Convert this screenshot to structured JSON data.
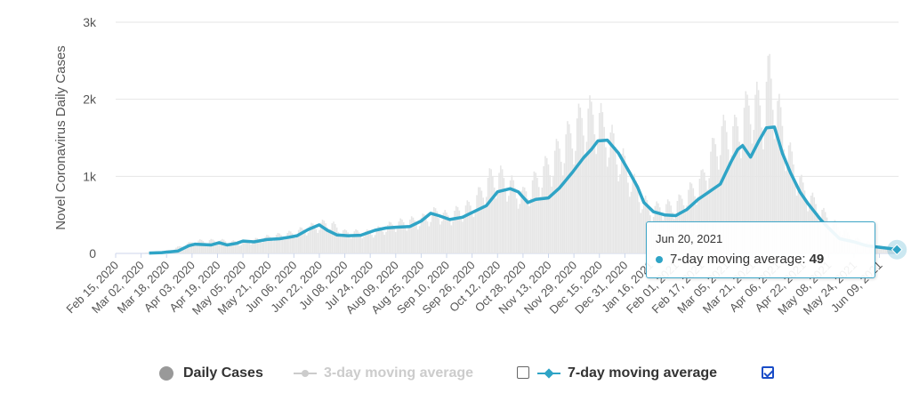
{
  "chart_data": {
    "type": "line",
    "ylabel": "Novel Coronavirus Daily Cases",
    "ylim": [
      0,
      3000
    ],
    "yticks": [
      {
        "value": 0,
        "label": "0"
      },
      {
        "value": 1000,
        "label": "1k"
      },
      {
        "value": 2000,
        "label": "2k"
      },
      {
        "value": 3000,
        "label": "3k"
      }
    ],
    "xrange": [
      "2020-02-15",
      "2021-06-21"
    ],
    "xticks": [
      "Feb 15, 2020",
      "Mar 02, 2020",
      "Mar 18, 2020",
      "Apr 03, 2020",
      "Apr 19, 2020",
      "May 05, 2020",
      "May 21, 2020",
      "Jun 06, 2020",
      "Jun 22, 2020",
      "Jul 08, 2020",
      "Jul 24, 2020",
      "Aug 09, 2020",
      "Aug 25, 2020",
      "Sep 10, 2020",
      "Sep 26, 2020",
      "Oct 12, 2020",
      "Oct 28, 2020",
      "Nov 13, 2020",
      "Nov 29, 2020",
      "Dec 15, 2020",
      "Dec 31, 2020",
      "Jan 16, 2021",
      "Feb 01, 2021",
      "Feb 17, 2021",
      "Mar 05, 2021",
      "Mar 21, 2021",
      "Apr 06, 2021",
      "Apr 22, 2021",
      "May 08, 2021",
      "May 24, 2021",
      "Jun 09, 2021"
    ],
    "series": [
      {
        "name": "Daily Cases",
        "visible": true,
        "color": "#e6e6e6",
        "style": "column",
        "x": [
          "2020-03-05",
          "2020-03-20",
          "2020-04-05",
          "2020-04-20",
          "2020-05-05",
          "2020-05-20",
          "2020-06-05",
          "2020-06-20",
          "2020-06-28",
          "2020-07-08",
          "2020-07-24",
          "2020-08-09",
          "2020-08-25",
          "2020-09-04",
          "2020-09-10",
          "2020-09-26",
          "2020-10-08",
          "2020-10-15",
          "2020-10-28",
          "2020-11-13",
          "2020-11-22",
          "2020-12-05",
          "2020-12-13",
          "2020-12-20",
          "2020-12-31",
          "2021-01-10",
          "2021-01-16",
          "2021-02-01",
          "2021-02-17",
          "2021-03-01",
          "2021-03-10",
          "2021-03-21",
          "2021-03-28",
          "2021-04-01",
          "2021-04-06",
          "2021-04-14",
          "2021-04-22",
          "2021-05-08",
          "2021-05-24",
          "2021-06-09",
          "2021-06-20"
        ],
        "values": [
          10,
          40,
          150,
          160,
          130,
          200,
          250,
          350,
          380,
          260,
          260,
          370,
          420,
          520,
          460,
          600,
          950,
          950,
          720,
          1100,
          1350,
          1700,
          1720,
          1500,
          1100,
          700,
          550,
          600,
          900,
          1500,
          1500,
          1900,
          1800,
          2250,
          1800,
          1200,
          800,
          420,
          180,
          90,
          55
        ]
      },
      {
        "name": "3-day moving average",
        "visible": false,
        "color": "#cccccc"
      },
      {
        "name": "7-day moving average",
        "visible": true,
        "color": "#2fa4c6",
        "x": [
          "2020-03-07",
          "2020-03-15",
          "2020-03-25",
          "2020-04-01",
          "2020-04-05",
          "2020-04-15",
          "2020-04-20",
          "2020-04-25",
          "2020-05-01",
          "2020-05-05",
          "2020-05-12",
          "2020-05-20",
          "2020-05-28",
          "2020-06-03",
          "2020-06-08",
          "2020-06-15",
          "2020-06-22",
          "2020-06-27",
          "2020-07-03",
          "2020-07-10",
          "2020-07-18",
          "2020-07-27",
          "2020-08-03",
          "2020-08-10",
          "2020-08-18",
          "2020-08-25",
          "2020-08-31",
          "2020-09-05",
          "2020-09-12",
          "2020-09-20",
          "2020-09-27",
          "2020-10-05",
          "2020-10-12",
          "2020-10-20",
          "2020-10-25",
          "2020-10-31",
          "2020-11-05",
          "2020-11-13",
          "2020-11-20",
          "2020-11-28",
          "2020-12-05",
          "2020-12-10",
          "2020-12-14",
          "2020-12-20",
          "2020-12-27",
          "2021-01-03",
          "2021-01-08",
          "2021-01-12",
          "2021-01-18",
          "2021-01-25",
          "2021-02-01",
          "2021-02-08",
          "2021-02-15",
          "2021-02-22",
          "2021-03-01",
          "2021-03-08",
          "2021-03-12",
          "2021-03-15",
          "2021-03-20",
          "2021-03-25",
          "2021-03-30",
          "2021-04-04",
          "2021-04-09",
          "2021-04-14",
          "2021-04-20",
          "2021-04-25",
          "2021-05-03",
          "2021-05-08",
          "2021-05-15",
          "2021-05-24",
          "2021-06-01",
          "2021-06-09",
          "2021-06-15",
          "2021-06-20"
        ],
        "values": [
          5,
          10,
          30,
          100,
          120,
          110,
          140,
          110,
          130,
          160,
          150,
          180,
          190,
          210,
          230,
          310,
          370,
          300,
          240,
          230,
          235,
          300,
          330,
          340,
          350,
          420,
          520,
          490,
          440,
          470,
          540,
          620,
          800,
          840,
          800,
          660,
          700,
          720,
          850,
          1050,
          1240,
          1350,
          1460,
          1470,
          1300,
          1050,
          860,
          660,
          540,
          500,
          490,
          570,
          700,
          800,
          900,
          1200,
          1350,
          1400,
          1250,
          1450,
          1630,
          1640,
          1300,
          1050,
          800,
          650,
          440,
          330,
          190,
          150,
          100,
          80,
          65,
          49
        ]
      }
    ],
    "tooltip": {
      "date": "Jun 20, 2021",
      "series": "7-day moving average",
      "value": 49
    }
  },
  "legend": {
    "items": [
      {
        "label": "Daily Cases",
        "color": "#999999"
      },
      {
        "label": "3-day moving average",
        "color": "#cccccc",
        "checked": false
      },
      {
        "label": "7-day moving average",
        "color": "#2fa4c6",
        "checked": true
      }
    ]
  },
  "tooltip": {
    "date": "Jun 20, 2021",
    "label": "7-day moving average:",
    "value": "49"
  }
}
